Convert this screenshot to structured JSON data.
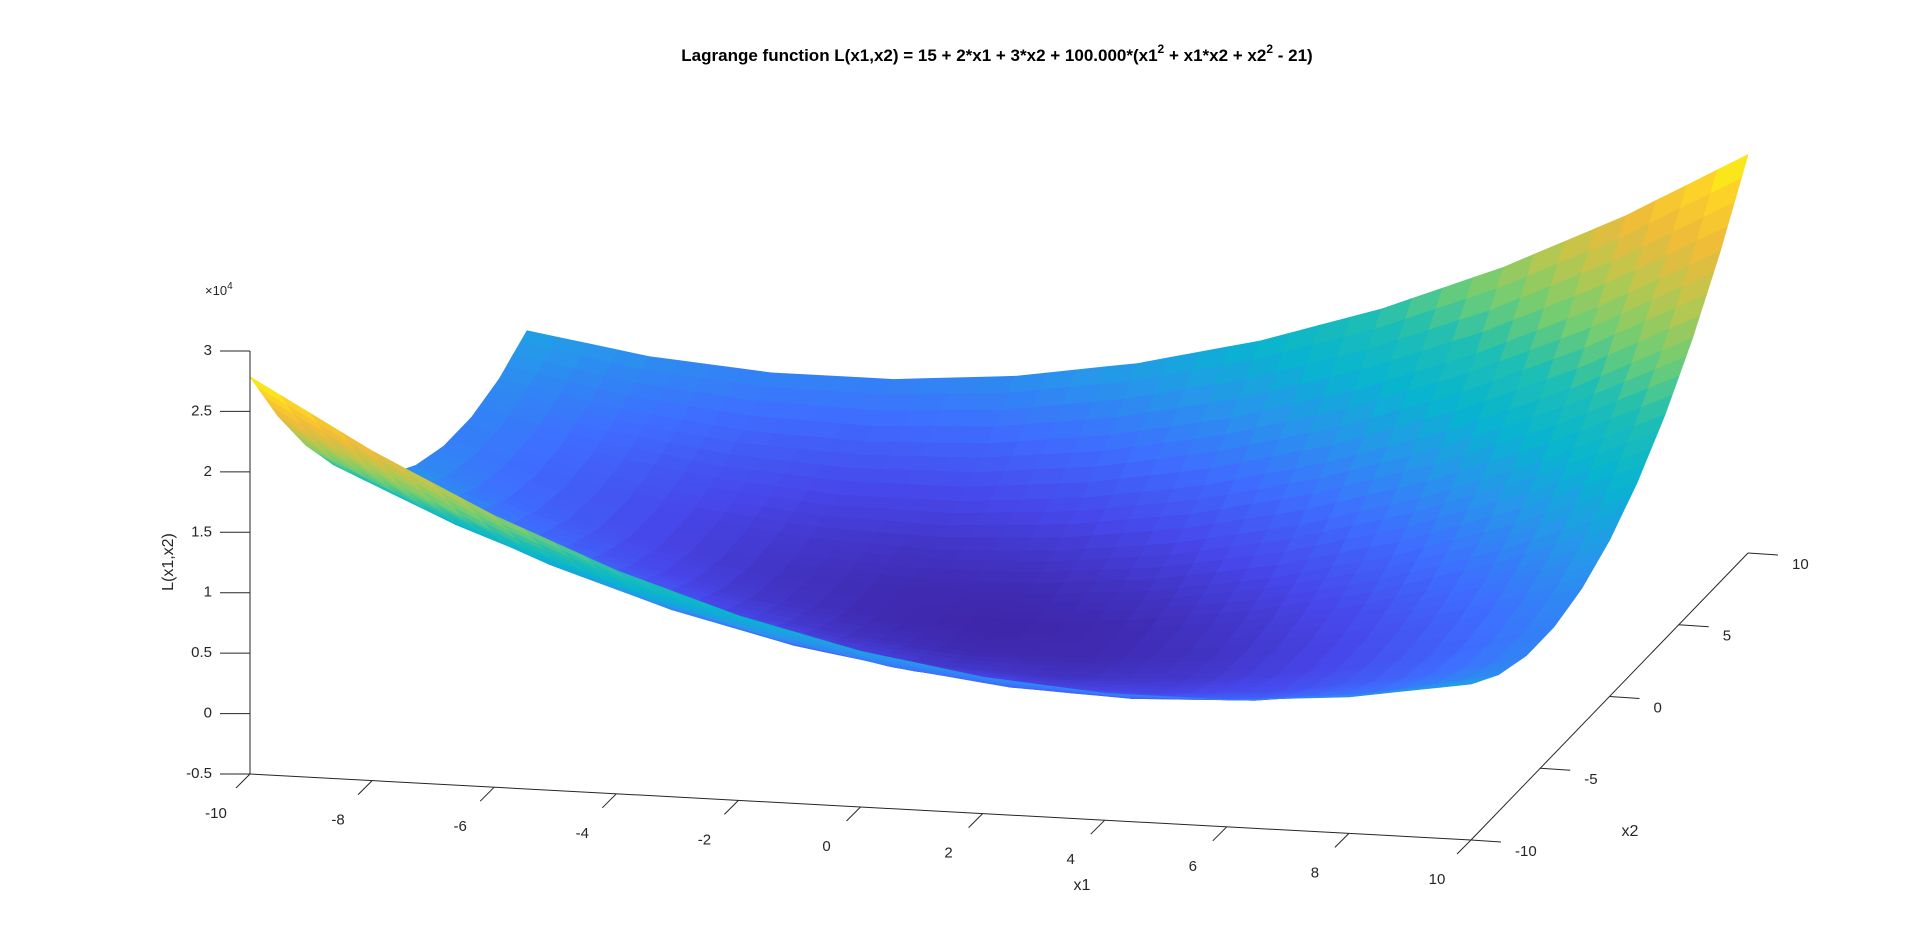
{
  "chart_data": {
    "type": "surface",
    "title": [
      "Lagrange function L(x1,x2) = 15 + 2*x1 + 3*x2 + 100.000*(x1",
      "2",
      " + x1*x2 + x2",
      "2",
      " - 21)"
    ],
    "xlabel": "x1",
    "ylabel": "x2",
    "zlabel": "L(x1,x2)",
    "z_exponent": [
      "×10",
      "4"
    ],
    "colormap": "parula",
    "x": [
      -10,
      -8,
      -6,
      -4,
      -2,
      0,
      2,
      4,
      6,
      8,
      10
    ],
    "y": [
      -10,
      -8,
      -6,
      -4,
      -2,
      0,
      2,
      4,
      6,
      8,
      10
    ],
    "z": [
      [
        2.7865,
        2.2269,
        1.7473,
        1.3477,
        1.0281,
        0.7885,
        0.6289,
        0.5493,
        0.5497,
        0.6301,
        0.7905
      ],
      [
        2.2271,
        1.7075,
        1.2679,
        0.9083,
        0.6287,
        0.4291,
        0.3095,
        0.2699,
        0.3103,
        0.4307,
        0.6311
      ],
      [
        1.7477,
        1.2681,
        0.8685,
        0.5489,
        0.3093,
        0.1497,
        0.0701,
        0.0705,
        0.1509,
        0.3113,
        0.5517
      ],
      [
        1.3483,
        0.9087,
        0.5491,
        0.2695,
        0.0699,
        -0.0497,
        -0.0893,
        -0.0489,
        0.0715,
        0.2719,
        0.5523
      ],
      [
        1.0289,
        0.6293,
        0.3097,
        0.0701,
        -0.0895,
        -0.1691,
        -0.1687,
        -0.0883,
        0.0721,
        0.3125,
        0.6329
      ],
      [
        0.7895,
        0.4299,
        0.1503,
        -0.0493,
        -0.1689,
        -0.2085,
        -0.1681,
        -0.0477,
        0.1527,
        0.4331,
        0.7935
      ],
      [
        0.6301,
        0.3105,
        0.0709,
        -0.0887,
        -0.1683,
        -0.1679,
        -0.0875,
        0.0729,
        0.3133,
        0.6337,
        1.0341
      ],
      [
        0.5507,
        0.2711,
        0.0715,
        -0.0481,
        -0.0877,
        -0.0473,
        0.0731,
        0.2735,
        0.5539,
        0.9143,
        1.3547
      ],
      [
        0.5513,
        0.3117,
        0.1521,
        0.0725,
        0.0729,
        0.1533,
        0.3137,
        0.5541,
        0.8745,
        1.2749,
        1.7553
      ],
      [
        0.6319,
        0.4323,
        0.3127,
        0.2731,
        0.3135,
        0.4339,
        0.6343,
        0.9147,
        1.2751,
        1.7155,
        2.2359
      ],
      [
        0.7925,
        0.6329,
        0.5533,
        0.5537,
        0.6341,
        0.7945,
        1.0349,
        1.3553,
        1.7557,
        2.2361,
        2.7965
      ]
    ],
    "xlim": [
      -10,
      10
    ],
    "ylim": [
      -10,
      10
    ],
    "zlim": [
      -0.5,
      3
    ],
    "xticks": [
      -10,
      -8,
      -6,
      -4,
      -2,
      0,
      2,
      4,
      6,
      8,
      10
    ],
    "yticks": [
      -10,
      -5,
      0,
      5,
      10
    ],
    "zticks": [
      -0.5,
      0,
      0.5,
      1,
      1.5,
      2,
      2.5,
      3
    ]
  }
}
